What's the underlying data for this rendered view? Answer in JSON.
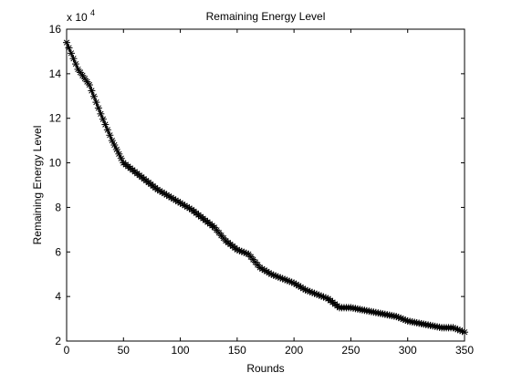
{
  "chart_data": {
    "type": "line",
    "title": "Remaining Energy Level",
    "xlabel": "Rounds",
    "ylabel": "Remaining Energy Level",
    "y_multiplier": "x 10",
    "y_multiplier_exponent": "4",
    "xlim": [
      0,
      350
    ],
    "ylim": [
      2,
      16
    ],
    "grid": false,
    "x_ticks": [
      0,
      50,
      100,
      150,
      200,
      250,
      300,
      350
    ],
    "y_ticks": [
      2,
      4,
      6,
      8,
      10,
      12,
      14,
      16
    ],
    "x_tick_labels": [
      "0",
      "50",
      "100",
      "150",
      "200",
      "250",
      "300",
      "350"
    ],
    "y_tick_labels": [
      "2",
      "4",
      "6",
      "8",
      "10",
      "12",
      "14",
      "16"
    ],
    "marker": "asterisk",
    "series_color": "#000000",
    "series": [
      {
        "x": [
          0,
          10,
          20,
          30,
          40,
          50,
          60,
          70,
          80,
          90,
          100,
          110,
          120,
          130,
          140,
          150,
          160,
          170,
          180,
          190,
          200,
          210,
          220,
          230,
          240,
          250,
          260,
          270,
          280,
          290,
          300,
          310,
          320,
          330,
          340,
          350
        ],
        "values": [
          15.4,
          14.2,
          13.5,
          12.2,
          11.0,
          10.0,
          9.6,
          9.2,
          8.8,
          8.5,
          8.2,
          7.9,
          7.5,
          7.1,
          6.5,
          6.1,
          5.9,
          5.3,
          5.0,
          4.8,
          4.6,
          4.3,
          4.1,
          3.9,
          3.5,
          3.5,
          3.4,
          3.3,
          3.2,
          3.1,
          2.9,
          2.8,
          2.7,
          2.6,
          2.6,
          2.4
        ]
      }
    ]
  }
}
